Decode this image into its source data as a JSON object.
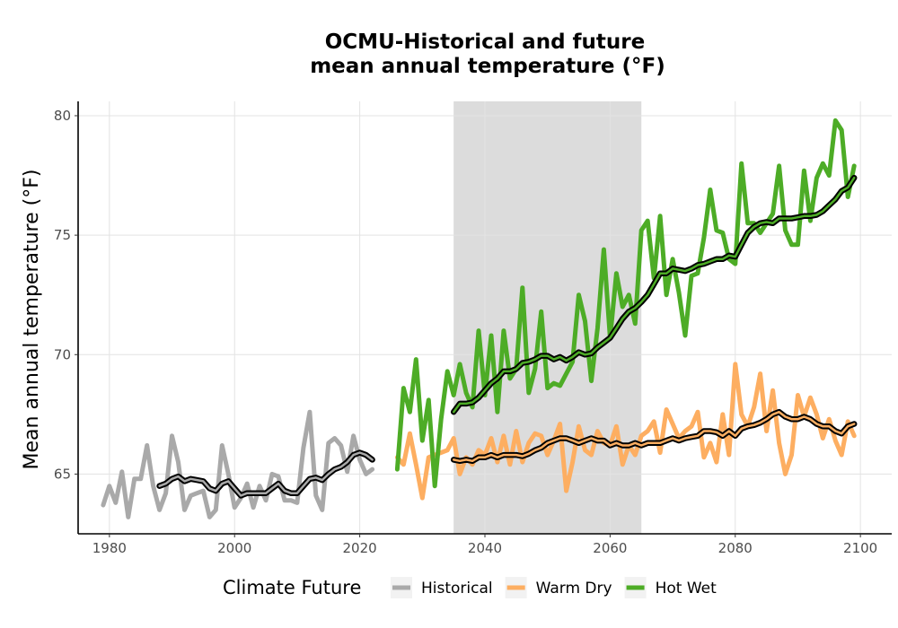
{
  "chart_data": {
    "type": "line",
    "title": "OCMU-Historical and future\nmean annual temperature (°F)",
    "title_lines": [
      "OCMU-Historical and future",
      "mean annual temperature (°F)"
    ],
    "xlabel": "",
    "ylabel": "Mean annual temperature (°F)",
    "xlim": [
      1975,
      2105
    ],
    "ylim": [
      62.5,
      80.6
    ],
    "x_ticks": [
      1980,
      2000,
      2020,
      2040,
      2060,
      2080,
      2100
    ],
    "y_ticks": [
      65,
      70,
      75,
      80
    ],
    "grid": true,
    "legend_title": "Climate Future",
    "legend_position": "bottom",
    "shaded_period": {
      "x_start": 2035,
      "x_end": 2065,
      "color": "#dcdcdc"
    },
    "series": [
      {
        "name": "Historical",
        "color": "#a9a9a9",
        "x": [
          1979,
          1980,
          1981,
          1982,
          1983,
          1984,
          1985,
          1986,
          1987,
          1988,
          1989,
          1990,
          1991,
          1992,
          1993,
          1994,
          1995,
          1996,
          1997,
          1998,
          1999,
          2000,
          2001,
          2002,
          2003,
          2004,
          2005,
          2006,
          2007,
          2008,
          2009,
          2010,
          2011,
          2012,
          2013,
          2014,
          2015,
          2016,
          2017,
          2018,
          2019,
          2020,
          2021,
          2022
        ],
        "values": [
          63.7,
          64.5,
          63.8,
          65.1,
          63.2,
          64.8,
          64.8,
          66.2,
          64.5,
          63.5,
          64.2,
          66.6,
          65.5,
          63.5,
          64.1,
          64.2,
          64.3,
          63.2,
          63.5,
          66.2,
          65.0,
          63.6,
          64.0,
          64.6,
          63.6,
          64.5,
          63.9,
          65.0,
          64.9,
          63.9,
          63.9,
          63.8,
          66.1,
          67.6,
          64.1,
          63.5,
          66.3,
          66.5,
          66.2,
          65.1,
          66.6,
          65.6,
          65.0,
          65.2
        ],
        "smooth_x": [
          1988,
          1989,
          1990,
          1991,
          1992,
          1993,
          1994,
          1995,
          1996,
          1997,
          1998,
          1999,
          2000,
          2001,
          2002,
          2003,
          2004,
          2005,
          2006,
          2007,
          2008,
          2009,
          2010,
          2011,
          2012,
          2013,
          2014,
          2015,
          2016,
          2017,
          2018,
          2019,
          2020,
          2021,
          2022
        ],
        "smooth_values": [
          64.5,
          64.6,
          64.8,
          64.9,
          64.7,
          64.8,
          64.75,
          64.7,
          64.4,
          64.3,
          64.6,
          64.7,
          64.4,
          64.1,
          64.2,
          64.2,
          64.2,
          64.2,
          64.4,
          64.6,
          64.3,
          64.2,
          64.2,
          64.5,
          64.8,
          64.85,
          64.75,
          65.0,
          65.2,
          65.3,
          65.5,
          65.8,
          65.9,
          65.8,
          65.6
        ]
      },
      {
        "name": "Warm Dry",
        "color": "#fdae61",
        "x": [
          2026,
          2027,
          2028,
          2029,
          2030,
          2031,
          2032,
          2033,
          2034,
          2035,
          2036,
          2037,
          2038,
          2039,
          2040,
          2041,
          2042,
          2043,
          2044,
          2045,
          2046,
          2047,
          2048,
          2049,
          2050,
          2051,
          2052,
          2053,
          2054,
          2055,
          2056,
          2057,
          2058,
          2059,
          2060,
          2061,
          2062,
          2063,
          2064,
          2065,
          2066,
          2067,
          2068,
          2069,
          2070,
          2071,
          2072,
          2073,
          2074,
          2075,
          2076,
          2077,
          2078,
          2079,
          2080,
          2081,
          2082,
          2083,
          2084,
          2085,
          2086,
          2087,
          2088,
          2089,
          2090,
          2091,
          2092,
          2093,
          2094,
          2095,
          2096,
          2097,
          2098,
          2099
        ],
        "values": [
          65.7,
          65.4,
          66.7,
          65.4,
          64.0,
          65.7,
          65.8,
          65.9,
          66.0,
          66.5,
          65.0,
          65.7,
          65.4,
          66.0,
          65.8,
          66.5,
          65.5,
          66.6,
          65.4,
          66.8,
          65.5,
          66.3,
          66.7,
          66.6,
          65.8,
          66.4,
          67.1,
          64.3,
          65.5,
          67.0,
          66.0,
          65.8,
          66.8,
          66.3,
          66.2,
          67.0,
          65.4,
          66.2,
          65.8,
          66.6,
          66.8,
          67.2,
          65.9,
          67.7,
          67.1,
          66.5,
          66.8,
          67.0,
          67.6,
          65.7,
          66.3,
          65.5,
          67.5,
          65.8,
          69.6,
          67.5,
          67.0,
          67.8,
          69.2,
          66.8,
          68.5,
          66.3,
          65.0,
          65.8,
          68.3,
          67.4,
          68.2,
          67.5,
          66.5,
          67.3,
          66.4,
          65.8,
          67.2,
          66.6
        ],
        "smooth_x": [
          2035,
          2036,
          2037,
          2038,
          2039,
          2040,
          2041,
          2042,
          2043,
          2044,
          2045,
          2046,
          2047,
          2048,
          2049,
          2050,
          2051,
          2052,
          2053,
          2054,
          2055,
          2056,
          2057,
          2058,
          2059,
          2060,
          2061,
          2062,
          2063,
          2064,
          2065,
          2066,
          2067,
          2068,
          2069,
          2070,
          2071,
          2072,
          2073,
          2074,
          2075,
          2076,
          2077,
          2078,
          2079,
          2080,
          2081,
          2082,
          2083,
          2084,
          2085,
          2086,
          2087,
          2088,
          2089,
          2090,
          2091,
          2092,
          2093,
          2094,
          2095,
          2096,
          2097,
          2098,
          2099
        ],
        "smooth_values": [
          65.6,
          65.55,
          65.6,
          65.55,
          65.7,
          65.7,
          65.8,
          65.7,
          65.8,
          65.8,
          65.8,
          65.75,
          65.85,
          66.0,
          66.1,
          66.3,
          66.4,
          66.5,
          66.5,
          66.4,
          66.3,
          66.4,
          66.5,
          66.4,
          66.4,
          66.2,
          66.3,
          66.2,
          66.2,
          66.3,
          66.2,
          66.3,
          66.3,
          66.3,
          66.4,
          66.5,
          66.4,
          66.5,
          66.55,
          66.6,
          66.8,
          66.8,
          66.75,
          66.6,
          66.8,
          66.6,
          66.9,
          67.0,
          67.05,
          67.15,
          67.3,
          67.5,
          67.6,
          67.4,
          67.3,
          67.3,
          67.4,
          67.3,
          67.1,
          67.0,
          67.0,
          66.8,
          66.7,
          67.0,
          67.1
        ]
      },
      {
        "name": "Hot Wet",
        "color": "#4dac26",
        "x": [
          2026,
          2027,
          2028,
          2029,
          2030,
          2031,
          2032,
          2033,
          2034,
          2035,
          2036,
          2037,
          2038,
          2039,
          2040,
          2041,
          2042,
          2043,
          2044,
          2045,
          2046,
          2047,
          2048,
          2049,
          2050,
          2051,
          2052,
          2053,
          2054,
          2055,
          2056,
          2057,
          2058,
          2059,
          2060,
          2061,
          2062,
          2063,
          2064,
          2065,
          2066,
          2067,
          2068,
          2069,
          2070,
          2071,
          2072,
          2073,
          2074,
          2075,
          2076,
          2077,
          2078,
          2079,
          2080,
          2081,
          2082,
          2083,
          2084,
          2085,
          2086,
          2087,
          2088,
          2089,
          2090,
          2091,
          2092,
          2093,
          2094,
          2095,
          2096,
          2097,
          2098,
          2099
        ],
        "values": [
          65.2,
          68.6,
          67.6,
          69.8,
          66.4,
          68.1,
          64.5,
          67.3,
          69.3,
          68.3,
          69.6,
          68.4,
          67.8,
          71.0,
          68.3,
          70.8,
          67.6,
          71.0,
          69.0,
          69.4,
          72.8,
          68.4,
          69.4,
          71.8,
          68.6,
          68.8,
          68.7,
          69.2,
          69.7,
          72.5,
          71.4,
          68.9,
          71.1,
          74.4,
          70.7,
          73.4,
          72.0,
          72.5,
          71.3,
          75.2,
          75.6,
          73.2,
          75.8,
          72.5,
          74.0,
          72.6,
          70.8,
          73.3,
          73.4,
          74.9,
          76.9,
          75.2,
          75.1,
          74.0,
          73.8,
          78.0,
          75.5,
          75.5,
          75.1,
          75.5,
          75.9,
          77.9,
          75.2,
          74.6,
          74.6,
          77.7,
          75.6,
          77.4,
          78.0,
          77.5,
          79.8,
          79.4,
          76.6,
          77.9
        ],
        "smooth_x": [
          2035,
          2036,
          2037,
          2038,
          2039,
          2040,
          2041,
          2042,
          2043,
          2044,
          2045,
          2046,
          2047,
          2048,
          2049,
          2050,
          2051,
          2052,
          2053,
          2054,
          2055,
          2056,
          2057,
          2058,
          2059,
          2060,
          2061,
          2062,
          2063,
          2064,
          2065,
          2066,
          2067,
          2068,
          2069,
          2070,
          2071,
          2072,
          2073,
          2074,
          2075,
          2076,
          2077,
          2078,
          2079,
          2080,
          2081,
          2082,
          2083,
          2084,
          2085,
          2086,
          2087,
          2088,
          2089,
          2090,
          2091,
          2092,
          2093,
          2094,
          2095,
          2096,
          2097,
          2098,
          2099
        ],
        "smooth_values": [
          67.6,
          67.95,
          67.95,
          68.0,
          68.2,
          68.5,
          68.8,
          69.0,
          69.3,
          69.3,
          69.4,
          69.65,
          69.7,
          69.8,
          69.95,
          69.95,
          69.8,
          69.9,
          69.75,
          69.9,
          70.1,
          70.0,
          70.05,
          70.3,
          70.5,
          70.7,
          71.1,
          71.5,
          71.8,
          71.95,
          72.2,
          72.5,
          72.95,
          73.4,
          73.4,
          73.6,
          73.55,
          73.5,
          73.6,
          73.75,
          73.8,
          73.9,
          74.0,
          74.0,
          74.15,
          74.1,
          74.6,
          75.1,
          75.35,
          75.5,
          75.55,
          75.5,
          75.7,
          75.7,
          75.7,
          75.75,
          75.8,
          75.8,
          75.85,
          76.0,
          76.25,
          76.5,
          76.85,
          77.0,
          77.4
        ]
      }
    ]
  }
}
